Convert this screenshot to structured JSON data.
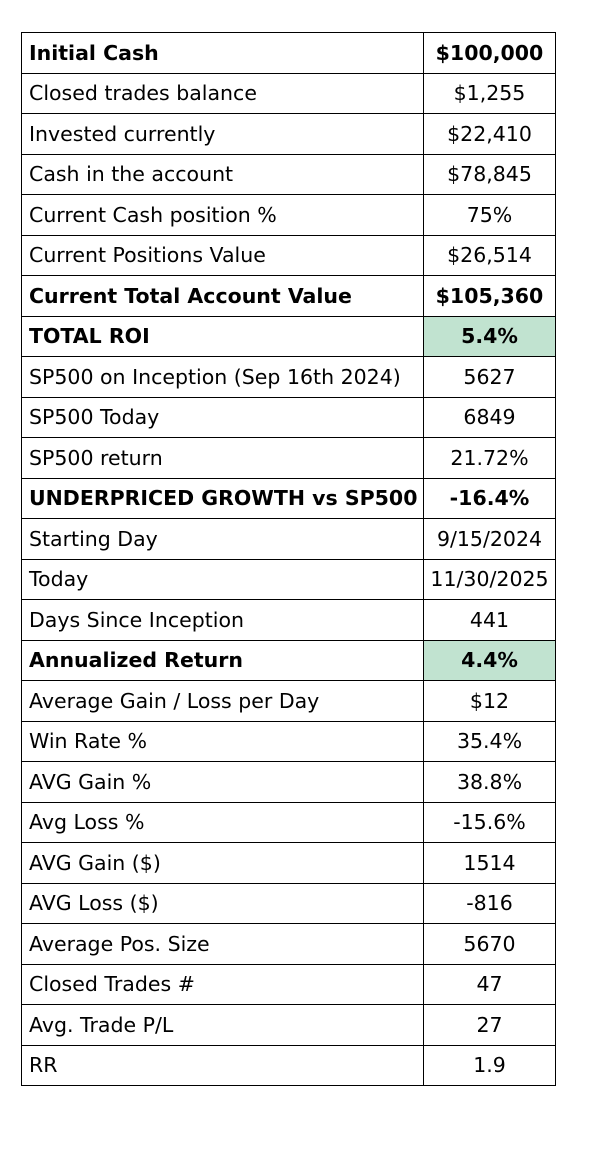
{
  "highlight_color": "#c1e3d0",
  "rows": [
    {
      "label": "Initial Cash",
      "value": "$100,000",
      "bold": true
    },
    {
      "label": "Closed trades balance",
      "value": "$1,255"
    },
    {
      "label": "Invested currently",
      "value": "$22,410"
    },
    {
      "label": "Cash in the account",
      "value": "$78,845"
    },
    {
      "label": "Current Cash position %",
      "value": "75%"
    },
    {
      "label": "Current Positions Value",
      "value": "$26,514"
    },
    {
      "label": "Current Total Account Value",
      "value": "$105,360",
      "bold": true
    },
    {
      "label": "TOTAL ROI",
      "value": "5.4%",
      "bold": true,
      "highlight": true
    },
    {
      "label": "SP500 on Inception (Sep 16th 2024)",
      "value": "5627"
    },
    {
      "label": "SP500 Today",
      "value": "6849"
    },
    {
      "label": "SP500 return",
      "value": "21.72%"
    },
    {
      "label": "UNDERPRICED GROWTH vs SP500",
      "value": "-16.4%",
      "bold": true
    },
    {
      "label": "Starting Day",
      "value": "9/15/2024"
    },
    {
      "label": "Today",
      "value": "11/30/2025"
    },
    {
      "label": "Days Since Inception",
      "value": "441"
    },
    {
      "label": "Annualized Return",
      "value": "4.4%",
      "bold": true,
      "highlight": true
    },
    {
      "label": "Average Gain / Loss per Day",
      "value": "$12"
    },
    {
      "label": "Win Rate %",
      "value": "35.4%"
    },
    {
      "label": "AVG Gain %",
      "value": "38.8%"
    },
    {
      "label": "Avg Loss %",
      "value": "-15.6%"
    },
    {
      "label": "AVG Gain ($)",
      "value": "1514"
    },
    {
      "label": "AVG Loss ($)",
      "value": "-816"
    },
    {
      "label": "Average Pos. Size",
      "value": "5670"
    },
    {
      "label": "Closed Trades #",
      "value": "47"
    },
    {
      "label": "Avg. Trade P/L",
      "value": "27"
    },
    {
      "label": "RR",
      "value": "1.9"
    }
  ]
}
